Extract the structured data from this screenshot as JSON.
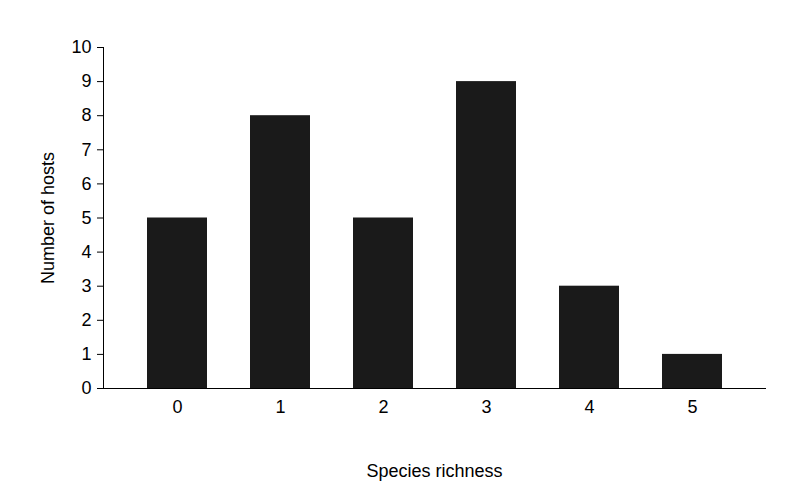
{
  "chart_data": {
    "type": "bar",
    "x_label": "Species richness",
    "y_label": "Number of hosts",
    "categories": [
      "0",
      "1",
      "2",
      "3",
      "4",
      "5"
    ],
    "values": [
      5,
      8,
      5,
      9,
      3,
      1
    ],
    "color": "#1a1a1a",
    "ylim": [
      0,
      10
    ],
    "yticks": [
      0,
      1,
      2,
      3,
      4,
      5,
      6,
      7,
      8,
      9,
      10
    ],
    "grid": false
  }
}
